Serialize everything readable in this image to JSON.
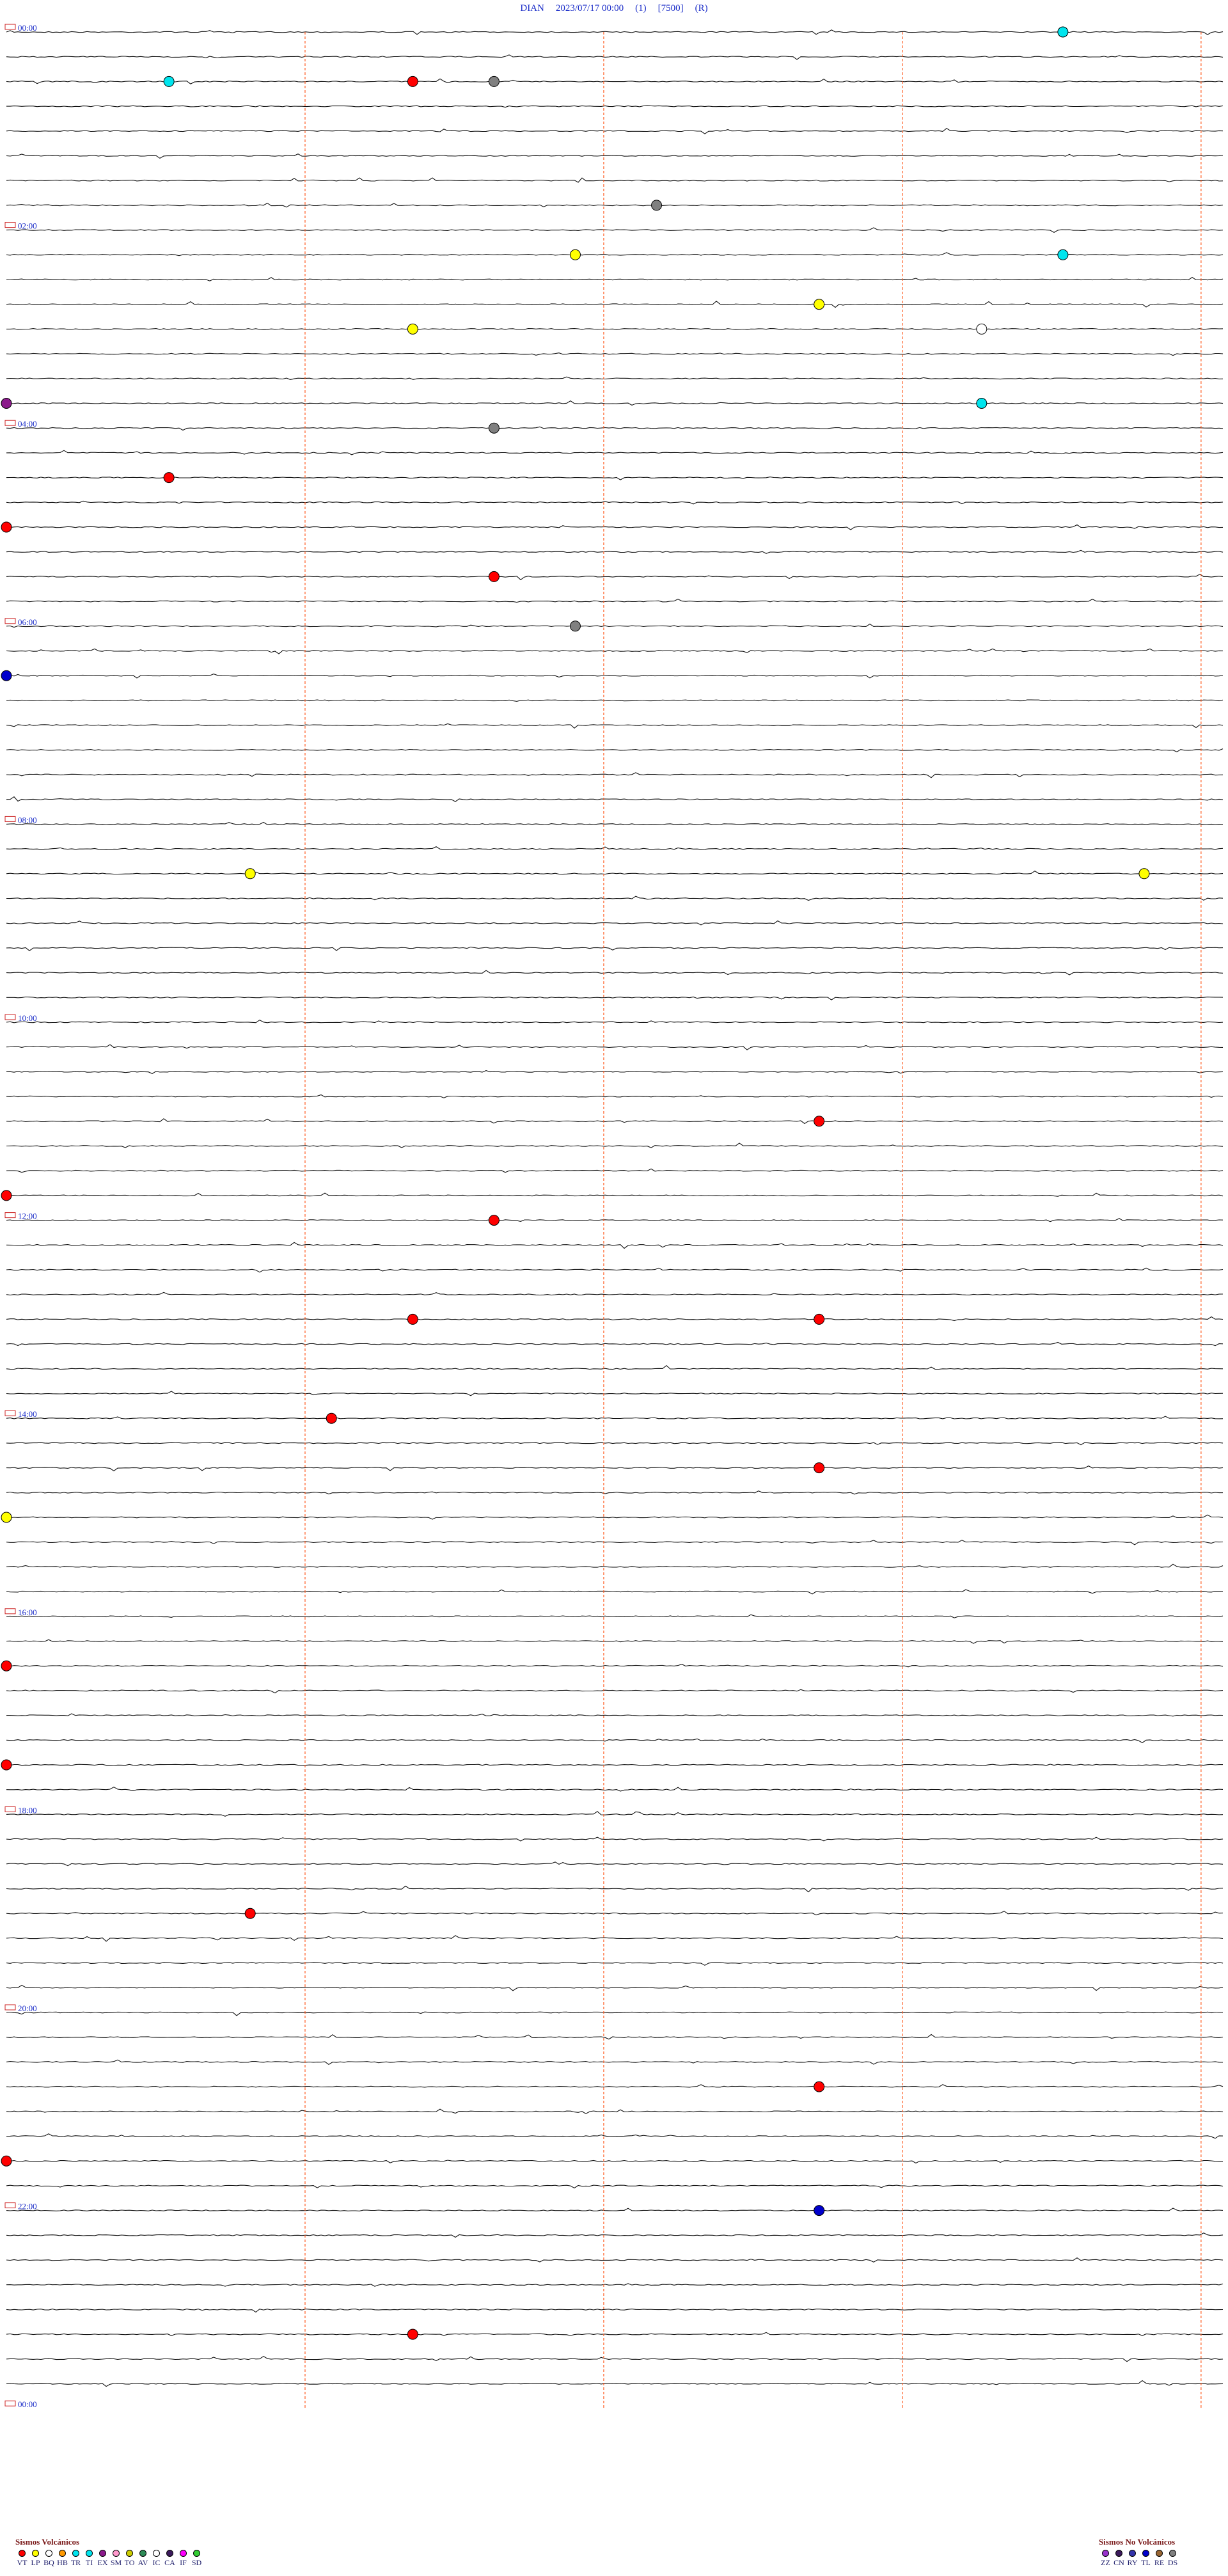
{
  "header": {
    "station": "DIAN",
    "datetime": "2023/07/17 00:00",
    "channel": "(1)",
    "gain": "[7500]",
    "mode": "(R)"
  },
  "chart_data": {
    "type": "helicorder",
    "hour_labels": [
      "00:00",
      "02:00",
      "04:00",
      "06:00",
      "08:00",
      "10:00",
      "12:00",
      "14:00",
      "16:00",
      "18:00",
      "20:00",
      "22:00",
      "00:00"
    ],
    "minute_marker_positions": [
      15,
      30,
      45,
      60
    ],
    "colors": {
      "trace": "#111111",
      "marker_line": "#ff5a1f",
      "label": "#1a2cc8",
      "VT": "#ff0000",
      "LP": "#ffff00",
      "BQ": "#ffffff",
      "HB": "#ff9900",
      "TR": "#00e5ee",
      "TI": "#00e5ee",
      "EX": "#8b1a8b",
      "SM": "#ff99cc",
      "TO": "#cccc00",
      "AV": "#2e8b57",
      "IC": "#ffffff",
      "CA": "#3c1a5c",
      "IF": "#ff00ff",
      "SD": "#33cc33",
      "ZZ": "#9933cc",
      "CN": "#3c1a5c",
      "RY": "#3333aa",
      "TL": "#0000cc",
      "RE": "#996633",
      "DS": "#808080"
    },
    "events": [
      {
        "t": "00:13",
        "class": "TI"
      },
      {
        "t": "00:32",
        "class": "TI"
      },
      {
        "t": "00:36",
        "class": "DS"
      },
      {
        "t": "00:35",
        "class": "VT"
      },
      {
        "t": "01:53",
        "class": "DS"
      },
      {
        "t": "02:22",
        "class": "LP"
      },
      {
        "t": "02:28",
        "class": "TI"
      },
      {
        "t": "02:55",
        "class": "LP"
      },
      {
        "t": "03:05",
        "class": "LP"
      },
      {
        "t": "03:12",
        "class": "BQ"
      },
      {
        "t": "03:45",
        "class": "EX"
      },
      {
        "t": "03:57",
        "class": "TR"
      },
      {
        "t": "04:06",
        "class": "DS"
      },
      {
        "t": "04:32",
        "class": "VT"
      },
      {
        "t": "05:00",
        "class": "VT"
      },
      {
        "t": "05:36",
        "class": "VT"
      },
      {
        "t": "06:07",
        "class": "DS"
      },
      {
        "t": "06:30",
        "class": "TL"
      },
      {
        "t": "08:33",
        "class": "LP"
      },
      {
        "t": "08:44",
        "class": "LP"
      },
      {
        "t": "11:10",
        "class": "VT"
      },
      {
        "t": "11:45",
        "class": "VT"
      },
      {
        "t": "12:06",
        "class": "VT"
      },
      {
        "t": "13:05",
        "class": "VT"
      },
      {
        "t": "13:10",
        "class": "VT"
      },
      {
        "t": "14:04",
        "class": "VT"
      },
      {
        "t": "14:40",
        "class": "VT"
      },
      {
        "t": "15:00",
        "class": "LP"
      },
      {
        "t": "16:30",
        "class": "VT"
      },
      {
        "t": "17:30",
        "class": "VT"
      },
      {
        "t": "19:03",
        "class": "VT"
      },
      {
        "t": "20:55",
        "class": "VT"
      },
      {
        "t": "21:30",
        "class": "VT"
      },
      {
        "t": "22:10",
        "class": "TL"
      },
      {
        "t": "23:20",
        "class": "VT"
      }
    ]
  },
  "legend": {
    "volcanic": {
      "title": "Sismos Volcánicos",
      "items": [
        {
          "code": "VT",
          "color": "#ff0000"
        },
        {
          "code": "LP",
          "color": "#ffff00"
        },
        {
          "code": "BQ",
          "color": "#ffffff"
        },
        {
          "code": "HB",
          "color": "#ff9900"
        },
        {
          "code": "TR",
          "color": "#00e5ee"
        },
        {
          "code": "TI",
          "color": "#00e5ee"
        },
        {
          "code": "EX",
          "color": "#8b1a8b"
        },
        {
          "code": "SM",
          "color": "#ff99cc"
        },
        {
          "code": "TO",
          "color": "#cccc00"
        },
        {
          "code": "AV",
          "color": "#2e8b57"
        },
        {
          "code": "IC",
          "color": "#ffffff"
        },
        {
          "code": "CA",
          "color": "#3c1a5c"
        },
        {
          "code": "IF",
          "color": "#ff00ff"
        },
        {
          "code": "SD",
          "color": "#33cc33"
        }
      ]
    },
    "non_volcanic": {
      "title": "Sismos No Volcánicos",
      "items": [
        {
          "code": "ZZ",
          "color": "#9933cc"
        },
        {
          "code": "CN",
          "color": "#3c1a5c"
        },
        {
          "code": "RY",
          "color": "#3333aa"
        },
        {
          "code": "TL",
          "color": "#0000cc"
        },
        {
          "code": "RE",
          "color": "#996633"
        },
        {
          "code": "DS",
          "color": "#808080"
        }
      ]
    }
  }
}
